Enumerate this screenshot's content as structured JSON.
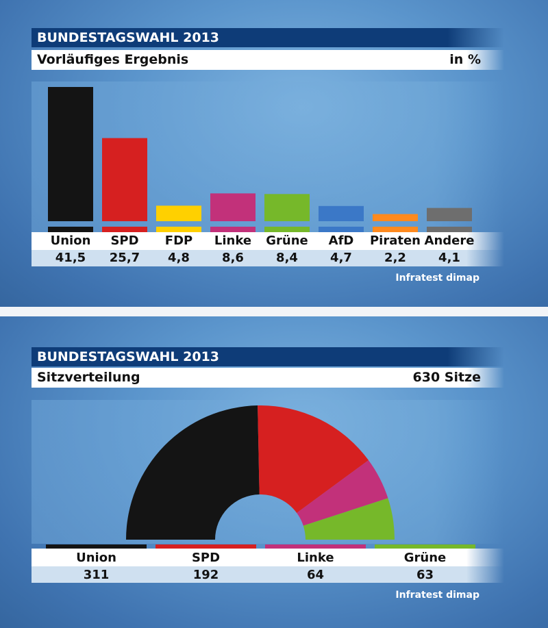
{
  "chart_data": [
    {
      "type": "bar",
      "header": "BUNDESTAGSWAHL 2013",
      "title": "Vorläufiges Ergebnis",
      "unit_label": "in %",
      "categories": [
        "Union",
        "SPD",
        "FDP",
        "Linke",
        "Grüne",
        "AfD",
        "Piraten",
        "Andere"
      ],
      "values": [
        41.5,
        25.7,
        4.8,
        8.6,
        8.4,
        4.7,
        2.2,
        4.1
      ],
      "value_labels": [
        "41,5",
        "25,7",
        "4,8",
        "8,6",
        "8,4",
        "4,7",
        "2,2",
        "4,1"
      ],
      "colors": [
        "#141414",
        "#d62020",
        "#ffd000",
        "#c2317a",
        "#76b82a",
        "#3b78c7",
        "#ff8a1e",
        "#6e6e6e"
      ],
      "source": "Infratest dimap"
    },
    {
      "type": "pie",
      "subtype": "half-donut",
      "header": "BUNDESTAGSWAHL 2013",
      "title": "Sitzverteilung",
      "total_label": "630 Sitze",
      "total": 630,
      "categories": [
        "Union",
        "SPD",
        "Linke",
        "Grüne"
      ],
      "values": [
        311,
        192,
        64,
        63
      ],
      "value_labels": [
        "311",
        "192",
        "64",
        "63"
      ],
      "colors": [
        "#141414",
        "#d62020",
        "#c2317a",
        "#76b82a"
      ],
      "source": "Infratest dimap"
    }
  ]
}
